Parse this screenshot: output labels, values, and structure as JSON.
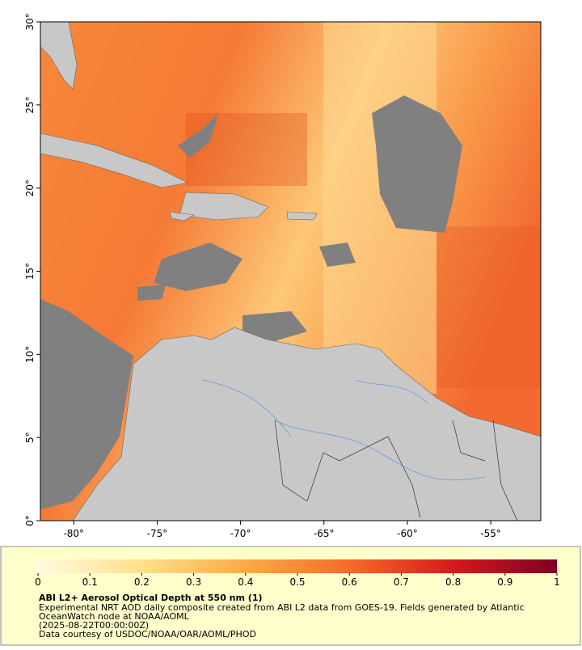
{
  "map": {
    "xlim": [
      -82,
      -52
    ],
    "ylim": [
      0,
      30
    ],
    "xticks": [
      {
        "value": -80,
        "label": "-80°"
      },
      {
        "value": -75,
        "label": "-75°"
      },
      {
        "value": -70,
        "label": "-70°"
      },
      {
        "value": -65,
        "label": "-65°"
      },
      {
        "value": -60,
        "label": "-60°"
      },
      {
        "value": -55,
        "label": "-55°"
      }
    ],
    "yticks": [
      {
        "value": 0,
        "label": "0°"
      },
      {
        "value": 5,
        "label": "5°"
      },
      {
        "value": 10,
        "label": "10°"
      },
      {
        "value": 15,
        "label": "15°"
      },
      {
        "value": 20,
        "label": "20°"
      },
      {
        "value": 25,
        "label": "25°"
      },
      {
        "value": 30,
        "label": "30°"
      }
    ]
  },
  "colorbar": {
    "lim": [
      0,
      1
    ],
    "ticks": [
      0,
      0.1,
      0.2,
      0.3,
      0.4,
      0.5,
      0.6,
      0.7,
      0.8,
      0.9,
      1
    ]
  },
  "caption": {
    "title": "ABI L2+ Aerosol Optical Depth at 550 nm (1)",
    "lines": [
      "Experimental NRT AOD daily composite created from ABI L2 data from GOES-19. Fields generated by Atlantic",
      "OceanWatch node at NOAA/AOML",
      "(2025-08-22T00:00:00Z)",
      "Data courtesy of USDOC/NOAA/OAR/AOML/PHOD"
    ]
  }
}
